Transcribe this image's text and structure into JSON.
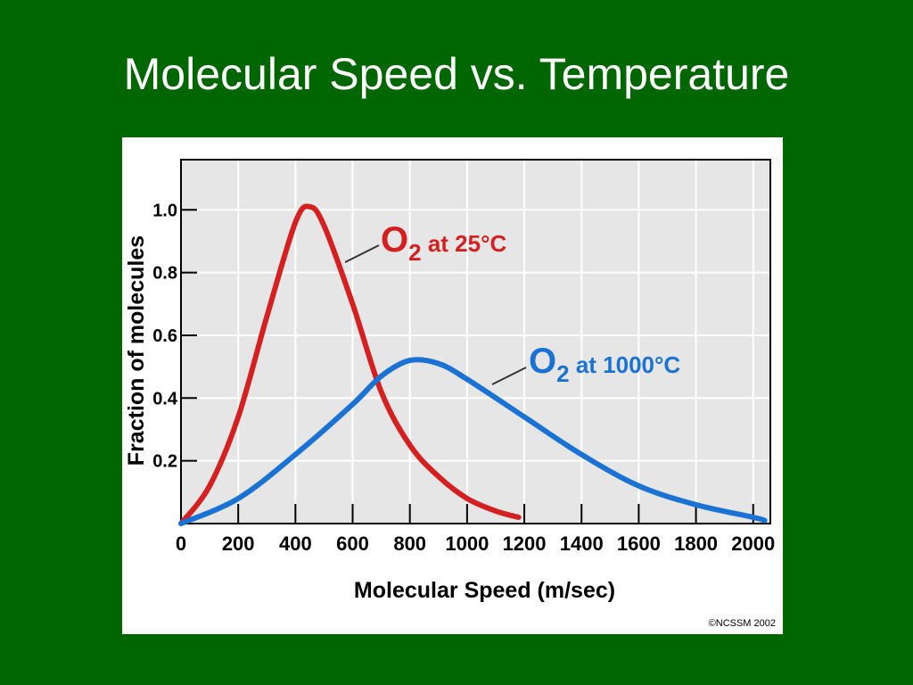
{
  "slide": {
    "title": "Molecular Speed vs. Temperature"
  },
  "copyright": "©NCSSM 2002",
  "colors": {
    "background": "#006600",
    "series_25": "#d42020",
    "series_1000": "#1a72d4",
    "plot_bg": "#e6e6e6"
  },
  "chart_data": {
    "type": "line",
    "title": "",
    "xlabel": "Molecular Speed (m/sec)",
    "ylabel": "Fraction of molecules",
    "xlim": [
      0,
      2060
    ],
    "ylim": [
      0,
      1.16
    ],
    "x_ticks": [
      "0",
      "200",
      "400",
      "600",
      "800",
      "1000",
      "1200",
      "1400",
      "1600",
      "1800",
      "2000"
    ],
    "y_ticks": [
      "0.2",
      "0.4",
      "0.6",
      "0.8",
      "1.0"
    ],
    "grid": true,
    "series": [
      {
        "name": "O2 at 25°C",
        "label_main": "O",
        "label_sub": "2",
        "label_rest": " at 25°C",
        "color": "#d42020",
        "points": [
          [
            0,
            0.0
          ],
          [
            100,
            0.12
          ],
          [
            200,
            0.34
          ],
          [
            300,
            0.66
          ],
          [
            400,
            0.96
          ],
          [
            450,
            1.01
          ],
          [
            500,
            0.95
          ],
          [
            600,
            0.7
          ],
          [
            700,
            0.42
          ],
          [
            800,
            0.25
          ],
          [
            900,
            0.15
          ],
          [
            1000,
            0.08
          ],
          [
            1100,
            0.04
          ],
          [
            1180,
            0.02
          ]
        ]
      },
      {
        "name": "O2 at 1000°C",
        "label_main": "O",
        "label_sub": "2",
        "label_rest": " at 1000°C",
        "color": "#1a72d4",
        "points": [
          [
            0,
            0.0
          ],
          [
            200,
            0.08
          ],
          [
            400,
            0.22
          ],
          [
            600,
            0.38
          ],
          [
            700,
            0.47
          ],
          [
            800,
            0.52
          ],
          [
            900,
            0.51
          ],
          [
            1000,
            0.46
          ],
          [
            1200,
            0.34
          ],
          [
            1400,
            0.22
          ],
          [
            1600,
            0.12
          ],
          [
            1800,
            0.06
          ],
          [
            2000,
            0.02
          ],
          [
            2040,
            0.01
          ]
        ]
      }
    ]
  }
}
